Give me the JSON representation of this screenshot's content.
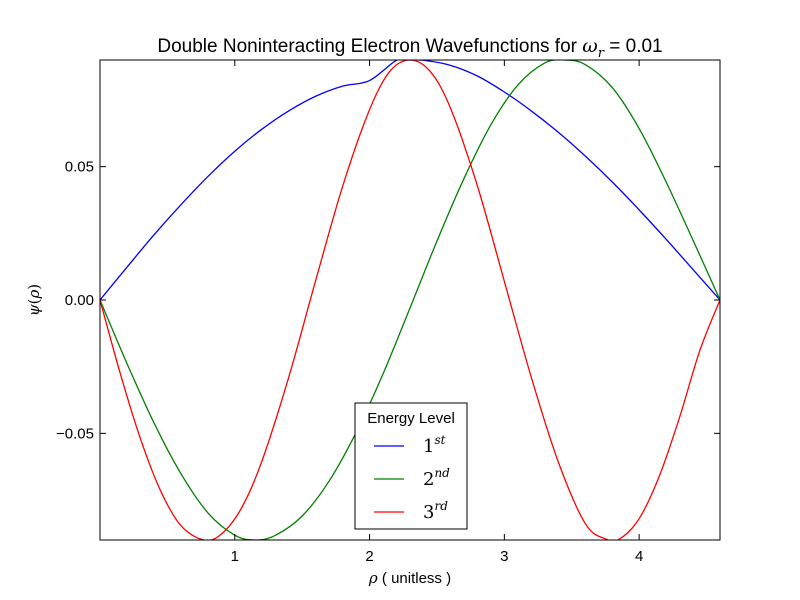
{
  "chart_data": {
    "type": "line",
    "title_prefix": "Double Noninteracting Electron Wavefunctions for ",
    "title_math_symbol": "ω",
    "title_math_sub": "r",
    "title_suffix": " = 0.01",
    "xlabel_symbol": "ρ",
    "xlabel_text": " ( unitless )",
    "ylabel_func": "ψ",
    "ylabel_arg": "ρ",
    "xlim": [
      0.0,
      4.6
    ],
    "ylim": [
      -0.09,
      0.09
    ],
    "x_ticks": [
      {
        "value": 1,
        "label": "1"
      },
      {
        "value": 2,
        "label": "2"
      },
      {
        "value": 3,
        "label": "3"
      },
      {
        "value": 4,
        "label": "4"
      }
    ],
    "y_ticks": [
      {
        "value": 0.05,
        "label": "0.05"
      },
      {
        "value": 0.0,
        "label": "0.00"
      },
      {
        "value": -0.05,
        "label": "−0.05"
      }
    ],
    "legend": {
      "title": "Energy Level",
      "placement": "lower-center"
    },
    "series": [
      {
        "name_base": "1",
        "name_sup": "st",
        "color": "#0000ff",
        "x": [
          0.0,
          0.2,
          0.4,
          0.6,
          0.8,
          1.0,
          1.2,
          1.4,
          1.6,
          1.8,
          2.0,
          2.2,
          2.3,
          2.4,
          2.6,
          2.8,
          3.0,
          3.2,
          3.4,
          3.6,
          3.8,
          4.0,
          4.2,
          4.4,
          4.6
        ],
        "y": [
          0.0,
          0.0123,
          0.0244,
          0.0357,
          0.0463,
          0.0558,
          0.064,
          0.0709,
          0.0764,
          0.0802,
          0.0823,
          0.0899,
          0.09,
          0.0899,
          0.088,
          0.084,
          0.078,
          0.0709,
          0.0629,
          0.054,
          0.0443,
          0.0338,
          0.0228,
          0.0114,
          0.0
        ]
      },
      {
        "name_base": "2",
        "name_sup": "nd",
        "color": "#008000",
        "x": [
          0.0,
          0.2,
          0.4,
          0.6,
          0.8,
          1.0,
          1.15,
          1.3,
          1.5,
          1.7,
          1.9,
          2.1,
          2.3,
          2.5,
          2.7,
          2.9,
          3.1,
          3.3,
          3.45,
          3.6,
          3.8,
          4.0,
          4.2,
          4.4,
          4.6
        ],
        "y": [
          0.0,
          -0.0238,
          -0.046,
          -0.0651,
          -0.0798,
          -0.0882,
          -0.09,
          -0.0883,
          -0.081,
          -0.0679,
          -0.0497,
          -0.0277,
          -0.003,
          0.0221,
          0.0455,
          0.0657,
          0.0806,
          0.0889,
          0.09,
          0.0883,
          0.0797,
          0.0643,
          0.0443,
          0.0224,
          0.0
        ]
      },
      {
        "name_base": "3",
        "name_sup": "rd",
        "color": "#ff0000",
        "x": [
          0.0,
          0.15,
          0.3,
          0.45,
          0.6,
          0.77,
          0.9,
          1.05,
          1.2,
          1.4,
          1.6,
          1.8,
          2.0,
          2.15,
          2.3,
          2.45,
          2.6,
          2.8,
          3.0,
          3.2,
          3.4,
          3.6,
          3.75,
          3.85,
          4.0,
          4.15,
          4.3,
          4.45,
          4.6
        ],
        "y": [
          0.0,
          -0.0275,
          -0.052,
          -0.0716,
          -0.0846,
          -0.09,
          -0.0878,
          -0.078,
          -0.0606,
          -0.029,
          0.0073,
          0.0426,
          0.0714,
          0.0857,
          0.09,
          0.0857,
          0.072,
          0.0428,
          0.007,
          -0.029,
          -0.0607,
          -0.0838,
          -0.0896,
          -0.0898,
          -0.082,
          -0.066,
          -0.044,
          -0.019,
          0.0
        ]
      }
    ]
  }
}
